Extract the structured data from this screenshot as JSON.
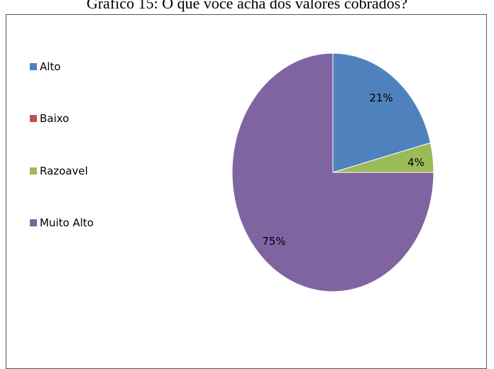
{
  "chart_data": {
    "type": "pie",
    "title": "Gráfico 15: O que você acha dos valores cobrados?",
    "legend_position": "left",
    "slices": [
      {
        "label": "Alto",
        "value": 21,
        "value_label": "21%",
        "color": "#4F81BD"
      },
      {
        "label": "Baixo",
        "value": 0,
        "value_label": "",
        "color": "#C0504D"
      },
      {
        "label": "Razoavel",
        "value": 4,
        "value_label": "4%",
        "color": "#9BBB59"
      },
      {
        "label": "Muito Alto",
        "value": 75,
        "value_label": "75%",
        "color": "#8064A2"
      }
    ]
  }
}
